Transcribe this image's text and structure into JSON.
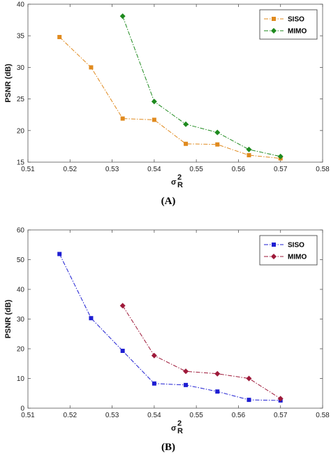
{
  "chart_data": [
    {
      "type": "line",
      "panel_label": "(A)",
      "ylabel": "PSNR (dB)",
      "xlabel_symbol": "σ",
      "xlabel_sup": "2",
      "xlabel_sub": "R",
      "xlim": [
        0.51,
        0.58
      ],
      "ylim": [
        15,
        40
      ],
      "xticks": [
        0.51,
        0.52,
        0.53,
        0.54,
        0.55,
        0.56,
        0.57,
        0.58
      ],
      "xtick_labels": [
        "0.51",
        "0.52",
        "0.53",
        "0.54",
        "0.55",
        "0.56",
        "0.57",
        "0.58"
      ],
      "yticks": [
        15,
        20,
        25,
        30,
        35,
        40
      ],
      "ytick_labels": [
        "15",
        "20",
        "25",
        "30",
        "35",
        "40"
      ],
      "legend_position": "top-right",
      "series": [
        {
          "name": "SISO",
          "color": "#E08A1E",
          "marker": "square",
          "x": [
            0.5175,
            0.525,
            0.5325,
            0.54,
            0.5475,
            0.555,
            0.5625,
            0.57
          ],
          "y": [
            34.8,
            30.0,
            21.9,
            21.7,
            17.9,
            17.8,
            16.1,
            15.6
          ]
        },
        {
          "name": "MIMO",
          "color": "#1E8A1E",
          "marker": "diamond",
          "x": [
            0.5325,
            0.54,
            0.5475,
            0.555,
            0.5625,
            0.57
          ],
          "y": [
            38.1,
            24.6,
            21.0,
            19.7,
            17.0,
            15.9
          ]
        }
      ]
    },
    {
      "type": "line",
      "panel_label": "(B)",
      "ylabel": "PSNR (dB)",
      "xlabel_symbol": "σ",
      "xlabel_sup": "2",
      "xlabel_sub": "R",
      "xlim": [
        0.51,
        0.58
      ],
      "ylim": [
        0,
        60
      ],
      "xticks": [
        0.51,
        0.52,
        0.53,
        0.54,
        0.55,
        0.56,
        0.57,
        0.58
      ],
      "xtick_labels": [
        "0.51",
        "0.52",
        "0.53",
        "0.54",
        "0.55",
        "0.56",
        "0.57",
        "0.58"
      ],
      "yticks": [
        0,
        10,
        20,
        30,
        40,
        50,
        60
      ],
      "ytick_labels": [
        "0",
        "10",
        "20",
        "30",
        "40",
        "50",
        "60"
      ],
      "legend_position": "top-right",
      "series": [
        {
          "name": "SISO",
          "color": "#1E1ED2",
          "marker": "square",
          "x": [
            0.5175,
            0.525,
            0.5325,
            0.54,
            0.5475,
            0.555,
            0.5625,
            0.57
          ],
          "y": [
            51.9,
            30.3,
            19.3,
            8.3,
            7.8,
            5.6,
            2.8,
            2.6
          ]
        },
        {
          "name": "MIMO",
          "color": "#9E1A3A",
          "marker": "diamond",
          "x": [
            0.5325,
            0.54,
            0.5475,
            0.555,
            0.5625,
            0.57
          ],
          "y": [
            34.5,
            17.7,
            12.4,
            11.6,
            10.0,
            3.2
          ]
        }
      ]
    }
  ]
}
